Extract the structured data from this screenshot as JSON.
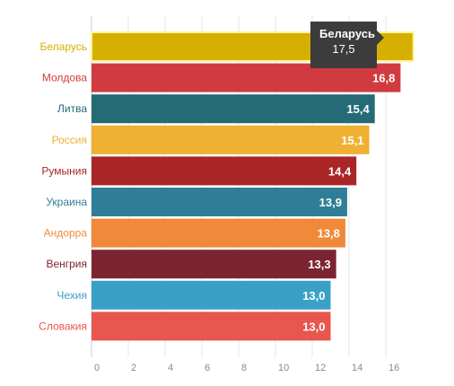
{
  "chart_data": {
    "type": "bar",
    "orientation": "horizontal",
    "categories": [
      "Беларусь",
      "Молдова",
      "Литва",
      "Россия",
      "Румыния",
      "Украина",
      "Андорра",
      "Венгрия",
      "Чехия",
      "Словакия"
    ],
    "values": [
      17.5,
      16.8,
      15.4,
      15.1,
      14.4,
      13.9,
      13.8,
      13.3,
      13.0,
      13.0
    ],
    "value_labels": [
      "",
      "16,8",
      "15,4",
      "15,1",
      "14,4",
      "13,9",
      "13,8",
      "13,3",
      "13,0",
      "13,0"
    ],
    "colors": [
      "#d6b000",
      "#d13b40",
      "#256b76",
      "#efb034",
      "#a92626",
      "#2f7e97",
      "#f0893a",
      "#7d2431",
      "#3aa1c6",
      "#e8564e"
    ],
    "label_colors": [
      "#d6b000",
      "#d13b40",
      "#256b76",
      "#efb034",
      "#a92626",
      "#2f7e97",
      "#f0893a",
      "#7d2431",
      "#3aa1c6",
      "#e8564e"
    ],
    "xlim": [
      0,
      17.5
    ],
    "xticks": [
      0,
      2,
      4,
      6,
      8,
      10,
      12,
      14,
      16
    ],
    "tick_labels": [
      "0",
      "2",
      "4",
      "6",
      "8",
      "10",
      "12",
      "14",
      "16"
    ],
    "grid": true,
    "highlighted_index": 0,
    "tooltip": {
      "title": "Беларусь",
      "value": "17,5"
    },
    "title": "",
    "xlabel": "",
    "ylabel": ""
  }
}
